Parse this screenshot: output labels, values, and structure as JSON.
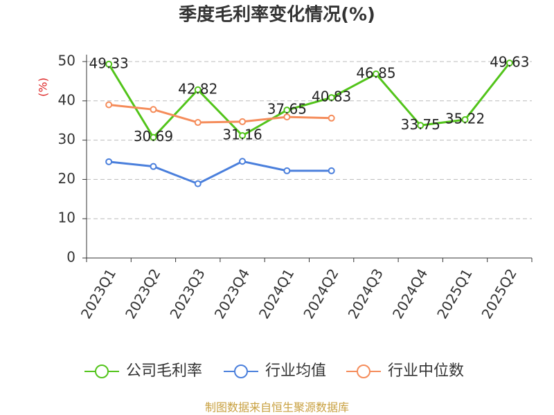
{
  "chart_data": {
    "type": "line",
    "title": "季度毛利率变化情况(%)",
    "y_label": "(%)",
    "categories": [
      "2023Q1",
      "2023Q2",
      "2023Q3",
      "2023Q4",
      "2024Q1",
      "2024Q2",
      "2024Q3",
      "2024Q4",
      "2025Q1",
      "2025Q2"
    ],
    "series": [
      {
        "name": "公司毛利率",
        "color": "#52c41a",
        "values": [
          49.33,
          30.69,
          42.82,
          31.16,
          37.65,
          40.83,
          46.85,
          33.75,
          35.22,
          49.63
        ],
        "show_labels": true
      },
      {
        "name": "行业均值",
        "color": "#4a7fdc",
        "values": [
          24.5,
          23.3,
          18.9,
          24.6,
          22.2,
          22.2,
          null,
          null,
          null,
          null
        ]
      },
      {
        "name": "行业中位数",
        "color": "#f58c5a",
        "values": [
          39.0,
          37.8,
          34.5,
          34.7,
          35.9,
          35.6,
          null,
          null,
          null,
          null
        ]
      }
    ],
    "ylim": [
      0,
      50
    ],
    "yticks": [
      0,
      10,
      20,
      30,
      40,
      50
    ],
    "grid": true,
    "source": "制图数据来自恒生聚源数据库"
  }
}
